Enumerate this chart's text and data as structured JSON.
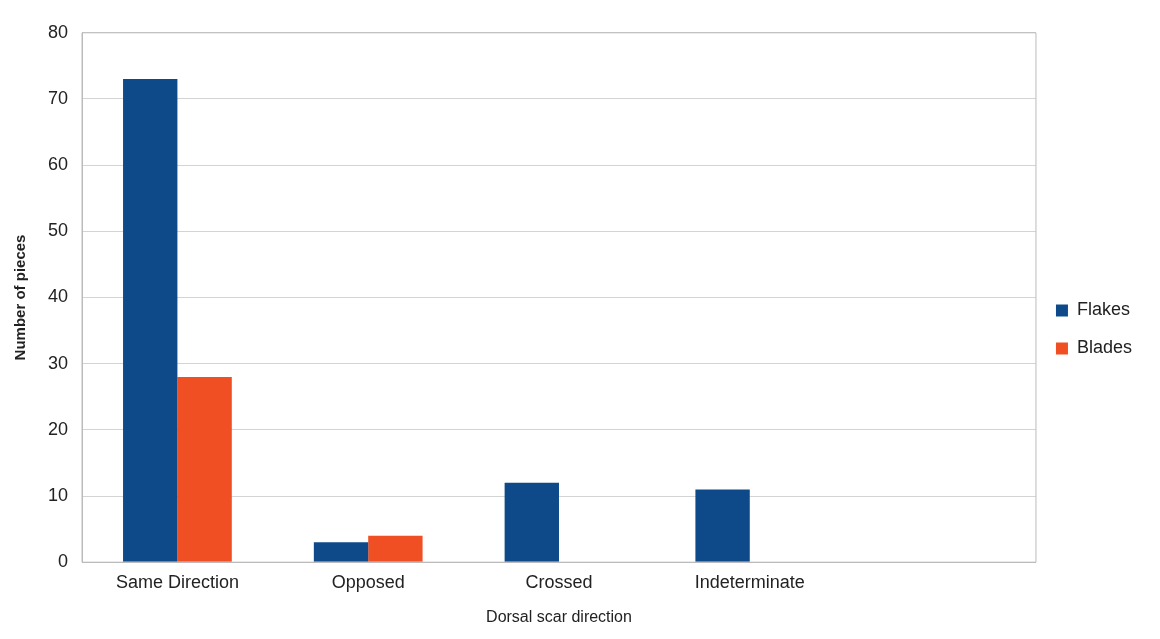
{
  "chart_data": {
    "type": "bar",
    "xlabel": "Dorsal scar direction",
    "ylabel": "Number of pieces",
    "categories": [
      "Same Direction",
      "Opposed",
      "Crossed",
      "Indeterminate",
      null
    ],
    "series": [
      {
        "name": "Flakes",
        "color": "#0e4a8a",
        "values": [
          73,
          3,
          12,
          11,
          null
        ]
      },
      {
        "name": "Blades",
        "color": "#f04e23",
        "values": [
          28,
          4,
          0,
          0,
          null
        ]
      }
    ],
    "ylim": [
      0,
      80
    ],
    "yticks": [
      0,
      10,
      20,
      30,
      40,
      50,
      60,
      70,
      80
    ],
    "grid": "y",
    "legend": "right"
  }
}
